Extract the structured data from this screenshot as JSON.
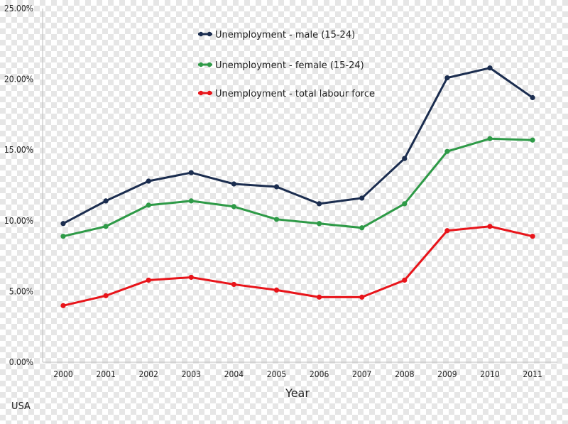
{
  "chart_data": {
    "type": "line",
    "country_label": "USA",
    "xlabel": "Year",
    "ylabel": "",
    "categories": [
      "2000",
      "2001",
      "2002",
      "2003",
      "2004",
      "2005",
      "2006",
      "2007",
      "2008",
      "2009",
      "2010",
      "2011"
    ],
    "yticks": [
      "0.00%",
      "5.00%",
      "10.00%",
      "15.00%",
      "20.00%",
      "25.00%"
    ],
    "ylim": [
      0,
      25
    ],
    "grid": false,
    "legend_position": "top-center",
    "series": [
      {
        "name": "Unemployment - male (15-24)",
        "color": "#1b2d4f",
        "values": [
          9.8,
          11.4,
          12.8,
          13.4,
          12.6,
          12.4,
          11.2,
          11.6,
          14.4,
          20.1,
          20.8,
          18.7
        ]
      },
      {
        "name": "Unemployment - female (15-24)",
        "color": "#2e9a47",
        "values": [
          8.9,
          9.6,
          11.1,
          11.4,
          11.0,
          10.1,
          9.8,
          9.5,
          11.2,
          14.9,
          15.8,
          15.7
        ]
      },
      {
        "name": "Unemployment - total labour force",
        "color": "#e8141a",
        "values": [
          4.0,
          4.7,
          5.8,
          6.0,
          5.5,
          5.1,
          4.6,
          4.6,
          5.8,
          9.3,
          9.6,
          8.9
        ]
      }
    ]
  }
}
